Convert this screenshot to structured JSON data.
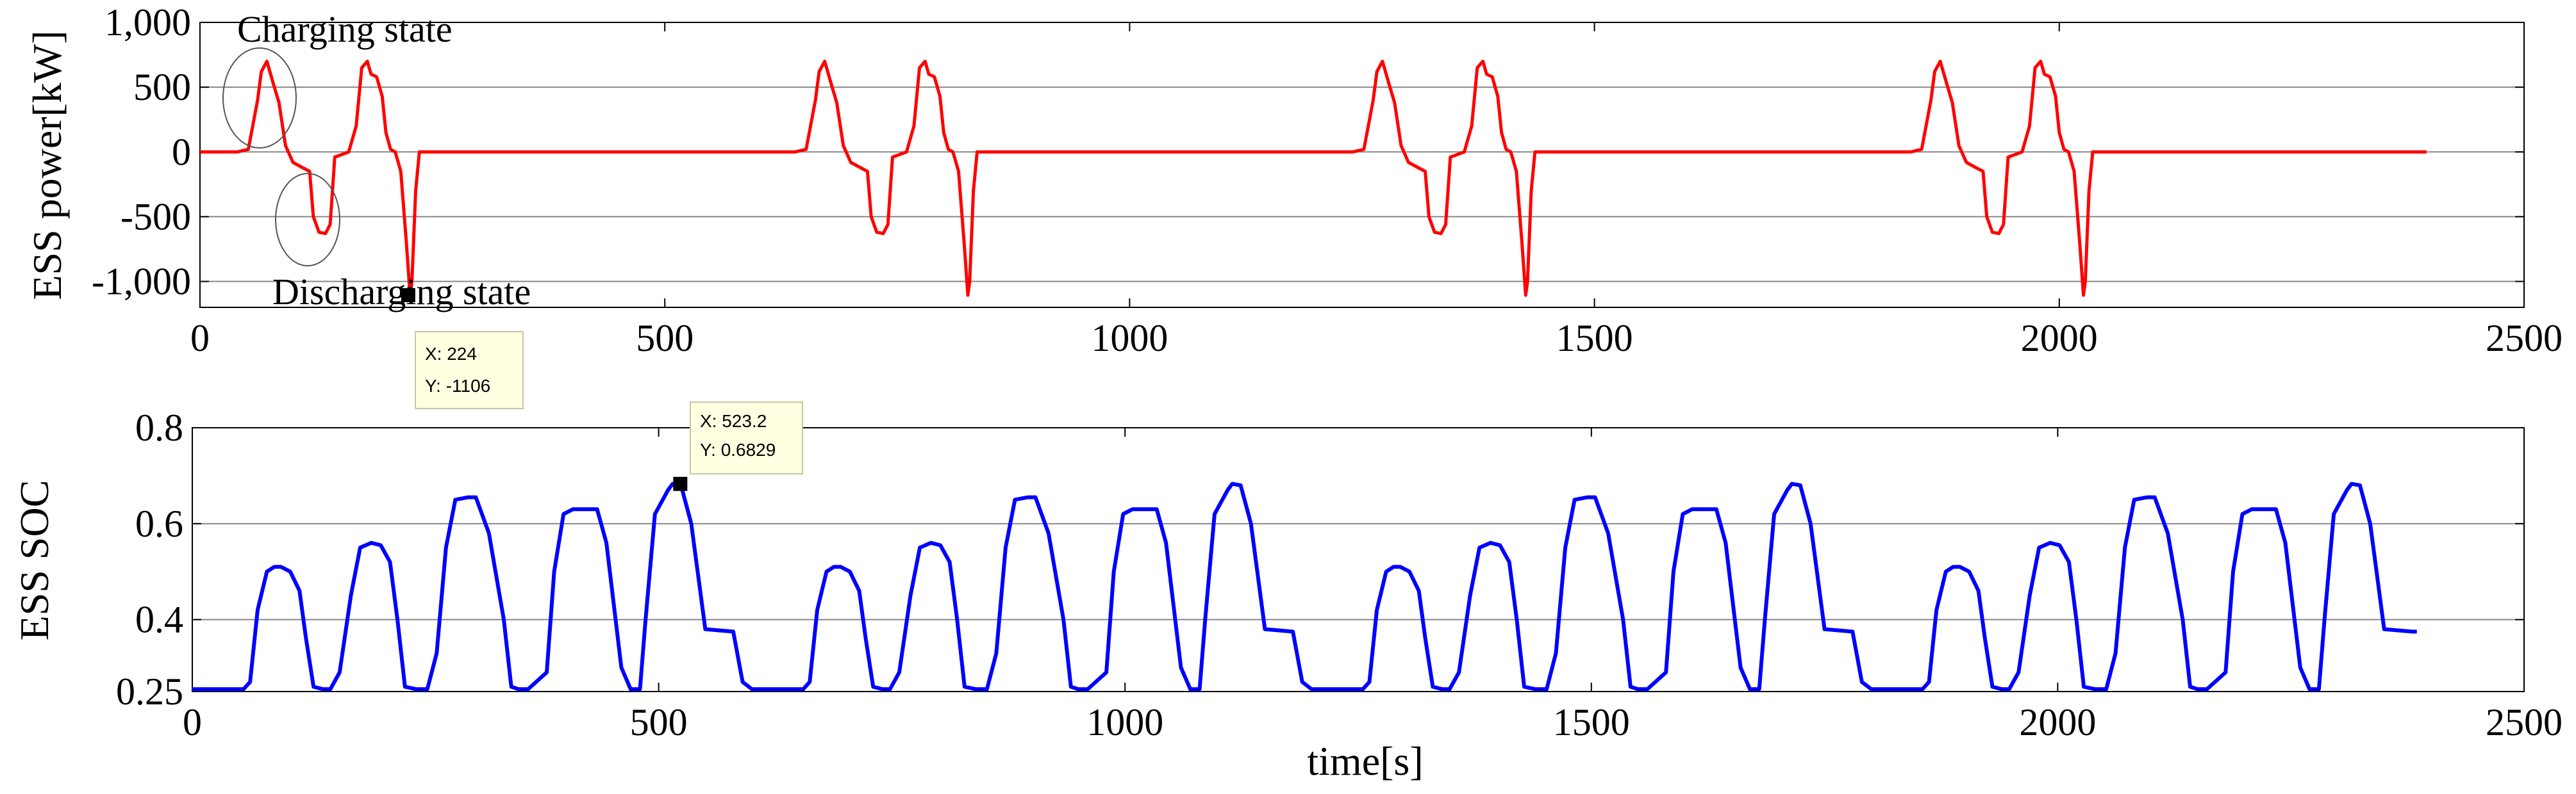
{
  "chart_data": [
    {
      "type": "line",
      "ylabel": "ESS power[kW]",
      "xlim": [
        0,
        2500
      ],
      "ylim": [
        -1200,
        1000
      ],
      "xticks": [
        0,
        500,
        1000,
        1500,
        2000,
        2500
      ],
      "yticks": [
        -1000,
        -500,
        0,
        500,
        1000
      ],
      "ytick_labels": [
        "-1,000",
        "-500",
        "0",
        "500",
        "1,000"
      ],
      "grid": true,
      "series": [
        {
          "name": "ESS power",
          "color": "#ff0000",
          "cycle_x": [
            0,
            40,
            52,
            62,
            66,
            72,
            80,
            85,
            92,
            100,
            110,
            118,
            122,
            128,
            135,
            140,
            145,
            160,
            168,
            174,
            180,
            184,
            190,
            196,
            200,
            205,
            210,
            216,
            222,
            226,
            228,
            232,
            236
          ],
          "cycle_y": [
            0,
            0,
            20,
            400,
            620,
            700,
            500,
            380,
            50,
            -80,
            -120,
            -150,
            -500,
            -620,
            -630,
            -560,
            -40,
            0,
            200,
            650,
            700,
            600,
            580,
            430,
            150,
            20,
            0,
            -150,
            -700,
            -1106,
            -1000,
            -300,
            0
          ],
          "period": 600,
          "cycles": 4,
          "end_x": 2395
        }
      ],
      "annotations": [
        {
          "text": "Charging state"
        },
        {
          "text": "Discharging state"
        }
      ],
      "datatip": {
        "x_label": "X: 224",
        "y_label": "Y: -1106",
        "x": 224,
        "y": -1106
      }
    },
    {
      "type": "line",
      "xlabel": "time[s]",
      "ylabel": "ESS SOC",
      "xlim": [
        0,
        2500
      ],
      "ylim": [
        0.25,
        0.8
      ],
      "xticks": [
        0,
        500,
        1000,
        1500,
        2000,
        2500
      ],
      "yticks": [
        0.25,
        0.4,
        0.6,
        0.8
      ],
      "ytick_labels": [
        "0.25",
        "0.4",
        "0.6",
        "0.8"
      ],
      "grid": true,
      "series": [
        {
          "name": "ESS SOC",
          "color": "#0000ff",
          "cycle_x": [
            0,
            55,
            62,
            70,
            80,
            88,
            95,
            105,
            115,
            122,
            130,
            140,
            148,
            158,
            170,
            180,
            192,
            202,
            212,
            220,
            228,
            240,
            252,
            262,
            272,
            282,
            296,
            304,
            318,
            334,
            342,
            350,
            360,
            380,
            388,
            398,
            408,
            418,
            434,
            444,
            460,
            470,
            480,
            486,
            496,
            510,
            515,
            524,
            535,
            550,
            580,
            590,
            600
          ],
          "cycle_y": [
            0.255,
            0.255,
            0.27,
            0.42,
            0.5,
            0.51,
            0.51,
            0.5,
            0.46,
            0.36,
            0.26,
            0.255,
            0.255,
            0.29,
            0.45,
            0.55,
            0.56,
            0.555,
            0.52,
            0.4,
            0.26,
            0.255,
            0.255,
            0.33,
            0.55,
            0.65,
            0.655,
            0.655,
            0.58,
            0.4,
            0.26,
            0.255,
            0.255,
            0.29,
            0.5,
            0.62,
            0.63,
            0.63,
            0.63,
            0.56,
            0.3,
            0.255,
            0.255,
            0.4,
            0.62,
            0.67,
            0.683,
            0.68,
            0.6,
            0.38,
            0.375,
            0.27,
            0.255
          ],
          "period": 600,
          "cycles": 4,
          "end_x": 2385
        }
      ],
      "datatip": {
        "x_label": "X: 523.2",
        "y_label": "Y: 0.6829",
        "x": 523.2,
        "y": 0.6829
      }
    }
  ]
}
